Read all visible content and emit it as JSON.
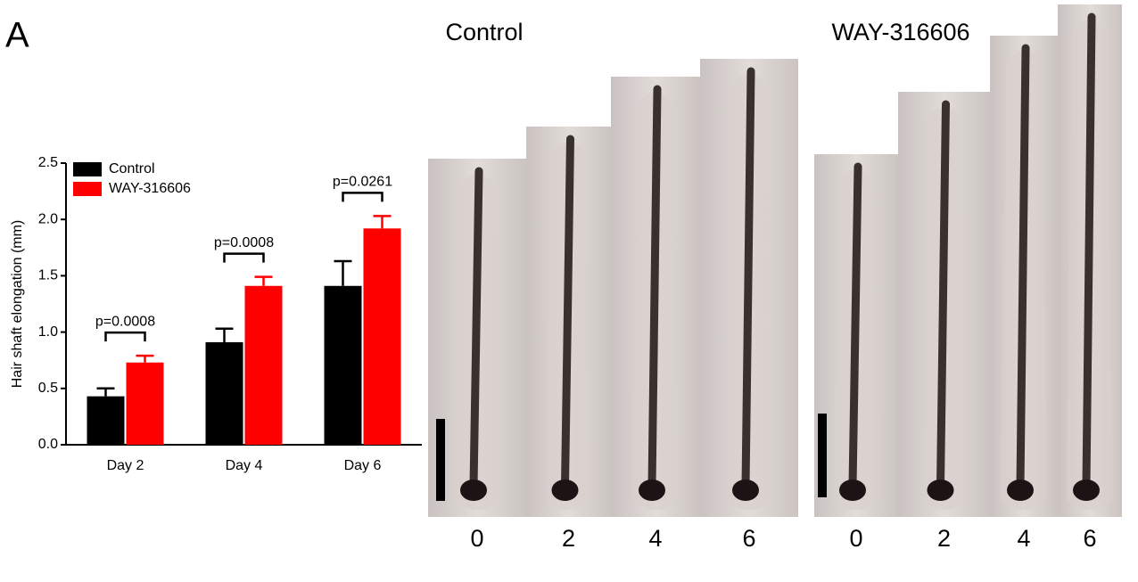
{
  "panel_label": "A",
  "chart_data": {
    "type": "bar",
    "ylabel": "Hair shaft elongation (mm)",
    "categories": [
      "Day 2",
      "Day 4",
      "Day 6"
    ],
    "series": [
      {
        "name": "Control",
        "color": "#000000",
        "values": [
          0.43,
          0.91,
          1.41
        ],
        "errors": [
          0.07,
          0.12,
          0.22
        ]
      },
      {
        "name": "WAY-316606",
        "color": "#ff0000",
        "values": [
          0.73,
          1.41,
          1.92
        ],
        "errors": [
          0.06,
          0.08,
          0.11
        ]
      }
    ],
    "ylim": [
      0,
      2.5
    ],
    "yticks": [
      {
        "value": 0,
        "label": "0.0"
      },
      {
        "value": 0.5,
        "label": "0.5"
      },
      {
        "value": 1,
        "label": "1.0"
      },
      {
        "value": 1.5,
        "label": "1.5"
      },
      {
        "value": 2,
        "label": "2.0"
      },
      {
        "value": 2.5,
        "label": "2.5"
      }
    ],
    "legend": "upper left",
    "annotations": [
      {
        "category": 0,
        "text": "p=0.0008"
      },
      {
        "category": 1,
        "text": "p=0.0008"
      },
      {
        "category": 2,
        "text": "p=0.0261"
      }
    ]
  },
  "images": {
    "groups": [
      {
        "title": "Control",
        "days": [
          "0",
          "2",
          "4",
          "6"
        ]
      },
      {
        "title": "WAY-316606",
        "days": [
          "0",
          "2",
          "4",
          "6"
        ]
      }
    ]
  }
}
